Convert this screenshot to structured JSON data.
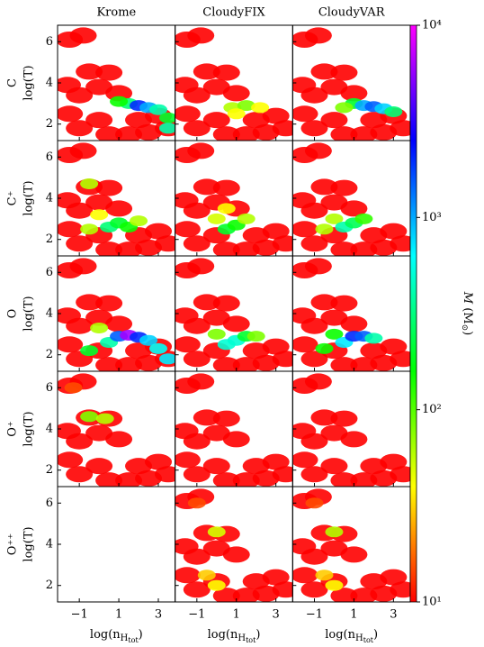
{
  "chart_data": {
    "type": "scatter",
    "columns": [
      "Krome",
      "CloudyFIX",
      "CloudyVAR"
    ],
    "rows": [
      "C",
      "C⁺",
      "O",
      "O⁺",
      "O⁺⁺"
    ],
    "y_label": "log(T)",
    "x_label": [
      "log(n",
      "H",
      "tot",
      ")"
    ],
    "xlim": [
      -2.1,
      3.85
    ],
    "ylim": [
      1.2,
      6.8
    ],
    "xticks": [
      {
        "value": -1,
        "label": "−1"
      },
      1,
      3
    ],
    "yticks": [
      2,
      4,
      6
    ],
    "colorbar": {
      "log": true,
      "lim": [
        10,
        10000
      ],
      "label": [
        "M",
        " (M",
        "⊙",
        ")"
      ],
      "ticks": [
        {
          "value": 10,
          "label": "10¹"
        },
        {
          "value": 100,
          "label": "10²"
        },
        {
          "value": 1000,
          "label": "10³"
        },
        {
          "value": 10000,
          "label": "10⁴"
        }
      ]
    },
    "panels": [
      {
        "x": [
          -1.5,
          -0.8,
          -0.5,
          0.5,
          -1.6,
          -1,
          -1.5,
          -1,
          0,
          0,
          0.5,
          1,
          1.5,
          2,
          2.5,
          3,
          3.5,
          1.5,
          2,
          2.5,
          3,
          3.5,
          1,
          3.5
        ],
        "y": [
          6.1,
          6.3,
          4.55,
          4.5,
          3.9,
          3.4,
          2.5,
          1.8,
          3.8,
          2.2,
          1.5,
          3.5,
          1.5,
          2.2,
          1.6,
          2.4,
          1.8,
          3,
          2.9,
          2.8,
          2.7,
          2.3,
          3.1,
          1.8
        ],
        "values": [
          10,
          10,
          10,
          10,
          10,
          10,
          10,
          10,
          10,
          10,
          10,
          10,
          10,
          10,
          10,
          10,
          10,
          300,
          2000,
          1000,
          400,
          200,
          150,
          400
        ]
      },
      {
        "x": [
          -1.5,
          -0.8,
          -0.5,
          0.5,
          -1.6,
          -1,
          -1.5,
          -1,
          0,
          0,
          0.5,
          1,
          1.5,
          2,
          2.5,
          3,
          3.5,
          0.8,
          1.5,
          2.2,
          1
        ],
        "y": [
          6.1,
          6.3,
          4.55,
          4.5,
          3.9,
          3.4,
          2.5,
          1.8,
          3.8,
          2.2,
          1.5,
          3.5,
          1.5,
          2.2,
          1.6,
          2.4,
          1.8,
          2.8,
          2.9,
          2.8,
          2.5
        ],
        "values": [
          10,
          10,
          10,
          10,
          10,
          10,
          10,
          10,
          10,
          10,
          10,
          10,
          10,
          10,
          10,
          10,
          10,
          60,
          80,
          40,
          40
        ]
      },
      {
        "x": [
          -1.5,
          -0.8,
          -0.5,
          0.5,
          -1.6,
          -1,
          -1.5,
          -1,
          0,
          0,
          0.5,
          1,
          1.5,
          2,
          2.5,
          3,
          3.5,
          1,
          1.5,
          2,
          2.5,
          3,
          0.5
        ],
        "y": [
          6.1,
          6.3,
          4.55,
          4.5,
          3.9,
          3.4,
          2.5,
          1.8,
          3.8,
          2.2,
          1.5,
          3.5,
          1.5,
          2.2,
          1.6,
          2.4,
          1.8,
          3,
          2.9,
          2.85,
          2.75,
          2.6,
          2.8
        ],
        "values": [
          10,
          10,
          10,
          10,
          10,
          10,
          10,
          10,
          10,
          10,
          10,
          10,
          10,
          10,
          10,
          10,
          10,
          200,
          1000,
          1500,
          800,
          300,
          80
        ]
      },
      {
        "x": [
          -1.5,
          -0.8,
          -0.5,
          0.5,
          -1.6,
          -1,
          -1.5,
          -1,
          0,
          0,
          0.5,
          1,
          1.5,
          2,
          2.5,
          3,
          3.5,
          -0.5,
          0,
          0.5,
          1,
          1.5,
          2,
          -0.5
        ],
        "y": [
          6.1,
          6.3,
          4.55,
          4.5,
          3.9,
          3.4,
          2.5,
          1.8,
          3.8,
          2.2,
          1.5,
          3.5,
          1.5,
          2.2,
          1.6,
          2.4,
          1.8,
          4.7,
          3.2,
          2.6,
          2.8,
          2.6,
          2.9,
          2.5
        ],
        "values": [
          10,
          10,
          10,
          10,
          10,
          10,
          10,
          10,
          10,
          10,
          10,
          10,
          10,
          10,
          10,
          10,
          10,
          60,
          40,
          300,
          200,
          150,
          60,
          60
        ]
      },
      {
        "x": [
          -1.5,
          -0.8,
          -0.5,
          0.5,
          -1.6,
          -1,
          -1.5,
          -1,
          0,
          0,
          0.5,
          1,
          1.5,
          2,
          2.5,
          3,
          3.5,
          0,
          0.5,
          1,
          1.5,
          0.5
        ],
        "y": [
          6.1,
          6.3,
          4.55,
          4.5,
          3.9,
          3.4,
          2.5,
          1.8,
          3.8,
          2.2,
          1.5,
          3.5,
          1.5,
          2.2,
          1.6,
          2.4,
          1.8,
          3,
          2.5,
          2.7,
          3,
          3.5
        ],
        "values": [
          10,
          10,
          10,
          10,
          10,
          10,
          10,
          10,
          10,
          10,
          10,
          10,
          10,
          10,
          10,
          10,
          10,
          50,
          200,
          150,
          60,
          40
        ]
      },
      {
        "x": [
          -1.5,
          -0.8,
          -0.5,
          0.5,
          -1.6,
          -1,
          -1.5,
          -1,
          0,
          0,
          0.5,
          1,
          1.5,
          2,
          2.5,
          3,
          3.5,
          0,
          0.5,
          1,
          1.5,
          -0.5
        ],
        "y": [
          6.1,
          6.3,
          4.55,
          4.5,
          3.9,
          3.4,
          2.5,
          1.8,
          3.8,
          2.2,
          1.5,
          3.5,
          1.5,
          2.2,
          1.6,
          2.4,
          1.8,
          3,
          2.6,
          2.8,
          3,
          2.5
        ],
        "values": [
          10,
          10,
          10,
          10,
          10,
          10,
          10,
          10,
          10,
          10,
          10,
          10,
          10,
          10,
          10,
          10,
          10,
          60,
          400,
          250,
          120,
          60
        ]
      },
      {
        "x": [
          -1.5,
          -0.8,
          -0.5,
          0.5,
          -1.6,
          -1,
          -1.5,
          -1,
          0,
          0,
          0.5,
          1,
          1.5,
          2,
          2.5,
          3,
          3.5,
          0,
          0.5,
          1,
          1.5,
          2,
          2.5,
          3,
          3.5,
          -0.5
        ],
        "y": [
          6.1,
          6.3,
          4.55,
          4.5,
          3.9,
          3.4,
          2.5,
          1.8,
          3.8,
          2.2,
          1.5,
          3.5,
          1.5,
          2.2,
          1.6,
          2.4,
          1.8,
          3.3,
          2.6,
          2.9,
          2.95,
          2.85,
          2.7,
          2.3,
          1.8,
          2.2
        ],
        "values": [
          10,
          10,
          10,
          10,
          10,
          10,
          10,
          10,
          10,
          10,
          10,
          10,
          10,
          10,
          10,
          10,
          10,
          60,
          400,
          1500,
          6000,
          2000,
          800,
          600,
          700,
          200
        ]
      },
      {
        "x": [
          -1.5,
          -0.8,
          -0.5,
          0.5,
          -1.6,
          -1,
          -1.5,
          -1,
          0,
          0,
          0.5,
          1,
          1.5,
          2,
          2.5,
          3,
          3.5,
          0,
          0.5,
          1,
          1.5,
          2
        ],
        "y": [
          6.1,
          6.3,
          4.55,
          4.5,
          3.9,
          3.4,
          2.5,
          1.8,
          3.8,
          2.2,
          1.5,
          3.5,
          1.5,
          2.2,
          1.6,
          2.4,
          1.8,
          3,
          2.5,
          2.7,
          2.9,
          2.9
        ],
        "values": [
          10,
          10,
          10,
          10,
          10,
          10,
          10,
          10,
          10,
          10,
          10,
          10,
          10,
          10,
          10,
          10,
          10,
          80,
          500,
          500,
          200,
          80
        ]
      },
      {
        "x": [
          -1.5,
          -0.8,
          -0.5,
          0.5,
          -1.6,
          -1,
          -1.5,
          -1,
          0,
          0,
          0.5,
          1,
          1.5,
          2,
          2.5,
          3,
          3.5,
          0,
          0.5,
          1,
          1.5,
          2,
          -0.5
        ],
        "y": [
          6.1,
          6.3,
          4.55,
          4.5,
          3.9,
          3.4,
          2.5,
          1.8,
          3.8,
          2.2,
          1.5,
          3.5,
          1.5,
          2.2,
          1.6,
          2.4,
          1.8,
          3,
          2.6,
          2.9,
          2.9,
          2.8,
          2.3
        ],
        "values": [
          10,
          10,
          10,
          10,
          10,
          10,
          10,
          10,
          10,
          10,
          10,
          10,
          10,
          10,
          10,
          10,
          10,
          150,
          700,
          2000,
          1500,
          400,
          150
        ]
      },
      {
        "x": [
          -1.5,
          -0.8,
          -0.5,
          0.5,
          -1.6,
          -1,
          -1.5,
          -1,
          0,
          0,
          0.5,
          1,
          1.5,
          2,
          2.5,
          3,
          3.5,
          -1.3,
          -0.5,
          0.3
        ],
        "y": [
          6.1,
          6.3,
          4.55,
          4.5,
          3.9,
          3.4,
          2.5,
          1.8,
          3.8,
          2.2,
          1.5,
          3.5,
          1.5,
          2.2,
          1.6,
          2.4,
          1.8,
          6,
          4.6,
          4.5
        ],
        "values": [
          10,
          10,
          10,
          10,
          10,
          10,
          10,
          10,
          10,
          10,
          10,
          10,
          10,
          10,
          10,
          10,
          10,
          15,
          80,
          60
        ]
      },
      {
        "x": [
          -1.5,
          -0.8,
          -0.5,
          0.5,
          -1.6,
          -1,
          -1.5,
          -1,
          0,
          0,
          0.5,
          1,
          1.5,
          2,
          2.5,
          3,
          3.5
        ],
        "y": [
          6.1,
          6.3,
          4.55,
          4.5,
          3.9,
          3.4,
          2.5,
          1.8,
          3.8,
          2.2,
          1.5,
          3.5,
          1.5,
          2.2,
          1.6,
          2.4,
          1.8
        ],
        "values": [
          10,
          10,
          10,
          10,
          10,
          10,
          10,
          10,
          10,
          10,
          10,
          10,
          10,
          10,
          10,
          10,
          10
        ]
      },
      {
        "x": [
          -1.5,
          -0.8,
          -0.5,
          0.5,
          -1.6,
          -1,
          -1.5,
          -1,
          0,
          0,
          0.5,
          1,
          1.5,
          2,
          2.5,
          3,
          3.5
        ],
        "y": [
          6.1,
          6.3,
          4.55,
          4.5,
          3.9,
          3.4,
          2.5,
          1.8,
          3.8,
          2.2,
          1.5,
          3.5,
          1.5,
          2.2,
          1.6,
          2.4,
          1.8
        ],
        "values": [
          10,
          10,
          10,
          10,
          10,
          10,
          10,
          10,
          10,
          10,
          10,
          10,
          10,
          10,
          10,
          10,
          10
        ]
      },
      {
        "x": [],
        "y": [],
        "values": []
      },
      {
        "x": [
          -1.5,
          -0.8,
          -0.5,
          0.5,
          -1.6,
          -1,
          -1.5,
          -1,
          0,
          0,
          0.5,
          1,
          1.5,
          2,
          2.5,
          3,
          3.5,
          -1,
          0,
          -0.5,
          0
        ],
        "y": [
          6.1,
          6.3,
          4.55,
          4.5,
          3.9,
          3.4,
          2.5,
          1.8,
          3.8,
          2.2,
          1.5,
          3.5,
          1.5,
          2.2,
          1.6,
          2.4,
          1.8,
          6,
          4.6,
          2.5,
          2
        ],
        "values": [
          10,
          10,
          10,
          10,
          10,
          10,
          10,
          10,
          10,
          10,
          10,
          10,
          10,
          10,
          10,
          10,
          10,
          15,
          50,
          30,
          40
        ]
      },
      {
        "x": [
          -1.5,
          -0.8,
          -0.5,
          0.5,
          -1.6,
          -1,
          -1.5,
          -1,
          0,
          0,
          0.5,
          1,
          1.5,
          2,
          2.5,
          3,
          3.5,
          -1,
          0,
          -0.5,
          0
        ],
        "y": [
          6.1,
          6.3,
          4.55,
          4.5,
          3.9,
          3.4,
          2.5,
          1.8,
          3.8,
          2.2,
          1.5,
          3.5,
          1.5,
          2.2,
          1.6,
          2.4,
          1.8,
          6,
          4.6,
          2.5,
          2
        ],
        "values": [
          10,
          10,
          10,
          10,
          10,
          10,
          10,
          10,
          10,
          10,
          10,
          10,
          10,
          10,
          10,
          10,
          10,
          15,
          60,
          30,
          40
        ]
      }
    ]
  }
}
